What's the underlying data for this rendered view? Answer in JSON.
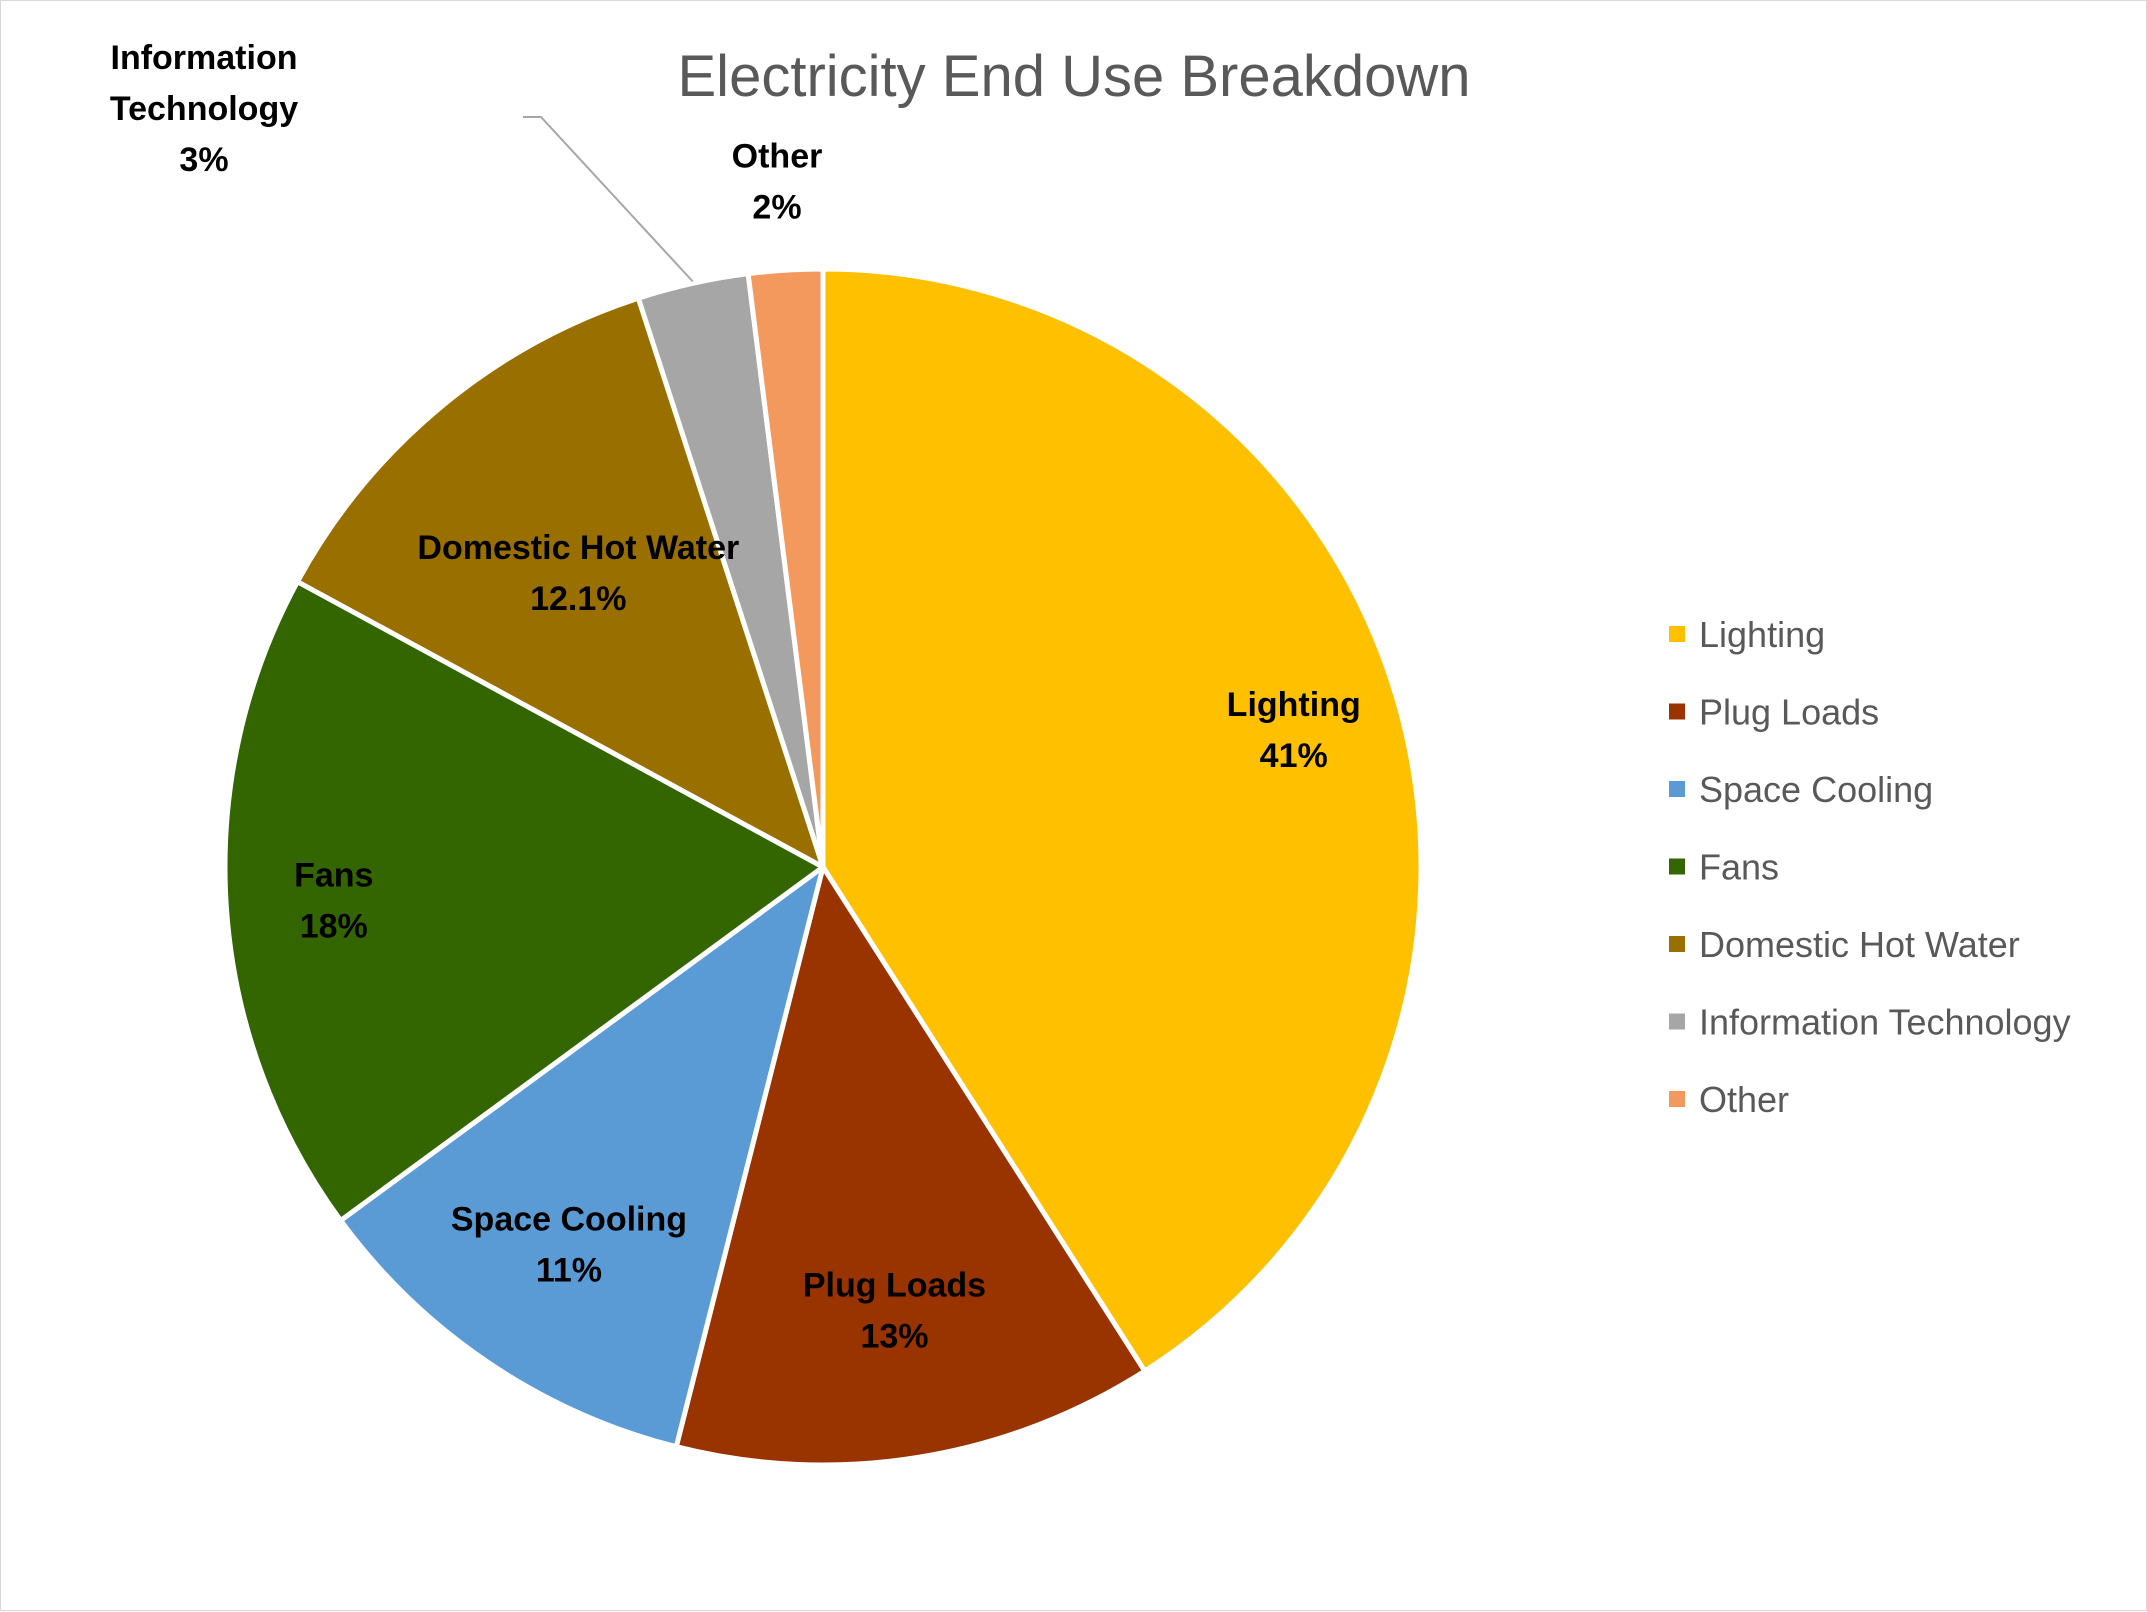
{
  "chart_data": {
    "type": "pie",
    "title": "Electricity End Use Breakdown",
    "legend_position": "right",
    "slices": [
      {
        "name": "Lighting",
        "value": 41,
        "label": "41%",
        "color": "#FFC000"
      },
      {
        "name": "Plug Loads",
        "value": 13,
        "label": "13%",
        "color": "#993300"
      },
      {
        "name": "Space Cooling",
        "value": 11,
        "label": "11%",
        "color": "#5B9BD5"
      },
      {
        "name": "Fans",
        "value": 18,
        "label": "18%",
        "color": "#336600"
      },
      {
        "name": "Domestic Hot Water",
        "value": 12.1,
        "label": "12.1%",
        "color": "#996F00"
      },
      {
        "name": "Information Technology",
        "value": 3,
        "label": "3%",
        "color": "#A6A6A6"
      },
      {
        "name": "Other",
        "value": 2,
        "label": "2%",
        "color": "#F4995E"
      }
    ]
  }
}
